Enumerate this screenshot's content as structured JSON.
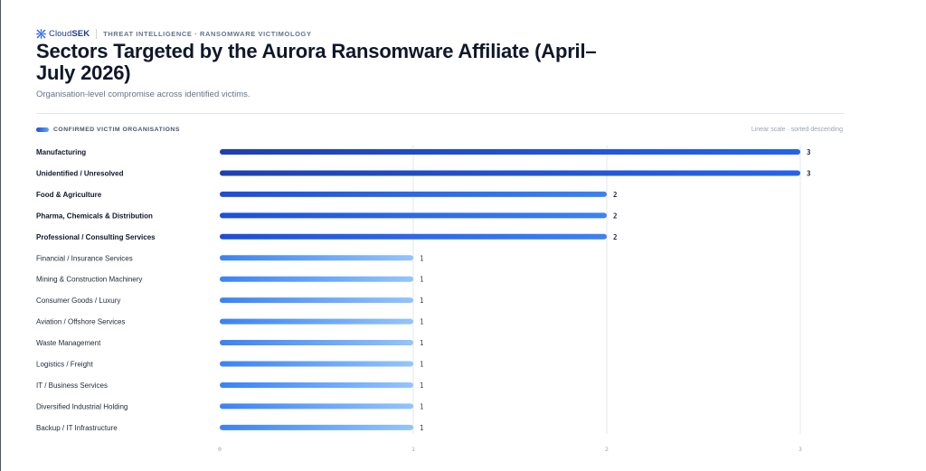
{
  "brand": {
    "logo_light": "Cloud",
    "logo_bold": "SEK",
    "kicker": "THREAT INTELLIGENCE · RANSOMWARE VICTIMOLOGY"
  },
  "header": {
    "title": "Sectors Targeted by the Aurora Ransomware Affiliate (April–July 2026)",
    "subtitle": "Organisation-level compromise across identified victims."
  },
  "legend": {
    "label": "CONFIRMED VICTIM ORGANISATIONS",
    "scale_note": "Linear scale · sorted descending"
  },
  "colors": {
    "bar_dark": "#1d4ed8",
    "bar_mid": "#2563eb",
    "bar_light": "#93c5fd",
    "grid": "#e5e7eb"
  },
  "chart_data": {
    "type": "bar",
    "orientation": "horizontal",
    "title": "Sectors Targeted by the Aurora Ransomware Affiliate (April–July 2026)",
    "subtitle": "Organisation-level compromise across identified victims.",
    "categories": [
      "Manufacturing",
      "Unidentified / Unresolved",
      "Food & Agriculture",
      "Pharma, Chemicals & Distribution",
      "Professional / Consulting Services",
      "Financial / Insurance Services",
      "Mining & Construction Machinery",
      "Consumer Goods / Luxury",
      "Aviation / Offshore Services",
      "Waste Management",
      "Logistics / Freight",
      "IT / Business Services",
      "Diversified Industrial Holding",
      "Backup / IT Infrastructure"
    ],
    "series": [
      {
        "name": "Confirmed victim organisations",
        "values": [
          3,
          3,
          2,
          2,
          2,
          1,
          1,
          1,
          1,
          1,
          1,
          1,
          1,
          1
        ]
      }
    ],
    "xlim": [
      0,
      3
    ],
    "xticks": [
      "0",
      "1",
      "2",
      "3"
    ],
    "grid": true,
    "legend_position": "top-left"
  }
}
